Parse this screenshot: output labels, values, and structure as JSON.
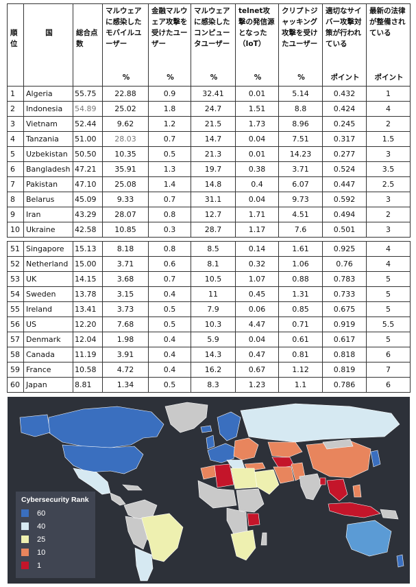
{
  "header": {
    "rank": "順位",
    "country": "国",
    "total": "総合点数",
    "mobile": "マルウェアに感染したモバイルユーザー",
    "finance": "金融マルウェア攻撃を受けたユーザー",
    "computer": "マルウェアに感染したコンピュータユーザー",
    "telnet": "telnet攻撃の発信源となった（IoT）",
    "crypto": "クリプトジャッキング攻撃を受けたユーザー",
    "policy": "適切なサイバー攻撃対策が行われている",
    "law": "最新の法律が整備されている",
    "unit_pct": "%",
    "unit_pt": "ポイント"
  },
  "top_rows": [
    {
      "rank": "1",
      "country": "Algeria",
      "total": "55.75",
      "mobile": "22.88",
      "finance": "0.9",
      "computer": "32.41",
      "telnet": "0.01",
      "crypto": "5.14",
      "policy": "0.432",
      "law": "1"
    },
    {
      "rank": "2",
      "country": "Indonesia",
      "total": "54.89",
      "mobile": "25.02",
      "finance": "1.8",
      "computer": "24.7",
      "telnet": "1.51",
      "crypto": "8.8",
      "policy": "0.424",
      "law": "4"
    },
    {
      "rank": "3",
      "country": "Vietnam",
      "total": "52.44",
      "mobile": "9.62",
      "finance": "1.2",
      "computer": "21.5",
      "telnet": "1.73",
      "crypto": "8.96",
      "policy": "0.245",
      "law": "2"
    },
    {
      "rank": "4",
      "country": "Tanzania",
      "total": "51.00",
      "mobile": "28.03",
      "finance": "0.7",
      "computer": "14.7",
      "telnet": "0.04",
      "crypto": "7.51",
      "policy": "0.317",
      "law": "1.5"
    },
    {
      "rank": "5",
      "country": "Uzbekistan",
      "total": "50.50",
      "mobile": "10.35",
      "finance": "0.5",
      "computer": "21.3",
      "telnet": "0.01",
      "crypto": "14.23",
      "policy": "0.277",
      "law": "3"
    },
    {
      "rank": "6",
      "country": "Bangladesh",
      "total": "47.21",
      "mobile": "35.91",
      "finance": "1.3",
      "computer": "19.7",
      "telnet": "0.38",
      "crypto": "3.71",
      "policy": "0.524",
      "law": "3.5"
    },
    {
      "rank": "7",
      "country": "Pakistan",
      "total": "47.10",
      "mobile": "25.08",
      "finance": "1.4",
      "computer": "14.8",
      "telnet": "0.4",
      "crypto": "6.07",
      "policy": "0.447",
      "law": "2.5"
    },
    {
      "rank": "8",
      "country": "Belarus",
      "total": "45.09",
      "mobile": "9.33",
      "finance": "0.7",
      "computer": "31.1",
      "telnet": "0.04",
      "crypto": "9.73",
      "policy": "0.592",
      "law": "3"
    },
    {
      "rank": "9",
      "country": "Iran",
      "total": "43.29",
      "mobile": "28.07",
      "finance": "0.8",
      "computer": "12.7",
      "telnet": "1.71",
      "crypto": "4.51",
      "policy": "0.494",
      "law": "2"
    },
    {
      "rank": "10",
      "country": "Ukraine",
      "total": "42.58",
      "mobile": "10.85",
      "finance": "0.3",
      "computer": "28.7",
      "telnet": "1.17",
      "crypto": "7.6",
      "policy": "0.501",
      "law": "3"
    }
  ],
  "bottom_rows": [
    {
      "rank": "51",
      "country": "Singapore",
      "total": "15.13",
      "mobile": "8.18",
      "finance": "0.8",
      "computer": "8.5",
      "telnet": "0.14",
      "crypto": "1.61",
      "policy": "0.925",
      "law": "4"
    },
    {
      "rank": "52",
      "country": "Netherland",
      "total": "15.00",
      "mobile": "3.71",
      "finance": "0.6",
      "computer": "8.1",
      "telnet": "0.32",
      "crypto": "1.06",
      "policy": "0.76",
      "law": "4"
    },
    {
      "rank": "53",
      "country": "UK",
      "total": "14.15",
      "mobile": "3.68",
      "finance": "0.7",
      "computer": "10.5",
      "telnet": "1.07",
      "crypto": "0.88",
      "policy": "0.783",
      "law": "5"
    },
    {
      "rank": "54",
      "country": "Sweden",
      "total": "13.78",
      "mobile": "3.15",
      "finance": "0.4",
      "computer": "11",
      "telnet": "0.45",
      "crypto": "1.31",
      "policy": "0.733",
      "law": "5"
    },
    {
      "rank": "55",
      "country": "Ireland",
      "total": "13.41",
      "mobile": "3.73",
      "finance": "0.5",
      "computer": "7.9",
      "telnet": "0.06",
      "crypto": "0.85",
      "policy": "0.675",
      "law": "5"
    },
    {
      "rank": "56",
      "country": "US",
      "total": "12.20",
      "mobile": "7.68",
      "finance": "0.5",
      "computer": "10.3",
      "telnet": "4.47",
      "crypto": "0.71",
      "policy": "0.919",
      "law": "5.5"
    },
    {
      "rank": "57",
      "country": "Denmark",
      "total": "12.04",
      "mobile": "1.98",
      "finance": "0.4",
      "computer": "5.9",
      "telnet": "0.04",
      "crypto": "0.61",
      "policy": "0.617",
      "law": "5"
    },
    {
      "rank": "58",
      "country": "Canada",
      "total": "11.19",
      "mobile": "3.91",
      "finance": "0.4",
      "computer": "14.3",
      "telnet": "0.47",
      "crypto": "0.81",
      "policy": "0.818",
      "law": "6"
    },
    {
      "rank": "59",
      "country": "France",
      "total": "10.58",
      "mobile": "4.72",
      "finance": "0.4",
      "computer": "16.2",
      "telnet": "0.67",
      "crypto": "1.12",
      "policy": "0.819",
      "law": "7"
    },
    {
      "rank": "60",
      "country": "Japan",
      "total": "8.81",
      "mobile": "1.34",
      "finance": "0.5",
      "computer": "8.3",
      "telnet": "1.23",
      "crypto": "1.1",
      "policy": "0.786",
      "law": "6"
    }
  ],
  "map": {
    "legend_title": "Cybersecurity Rank",
    "legend": [
      {
        "label": "60",
        "color": "#3a6fbf"
      },
      {
        "label": "40",
        "color": "#d6e9f2"
      },
      {
        "label": "25",
        "color": "#eef0b0"
      },
      {
        "label": "10",
        "color": "#e8855d"
      },
      {
        "label": "1",
        "color": "#c4152a"
      }
    ],
    "no_data_color": "#c9c9c9",
    "background_color": "#2d3139"
  }
}
